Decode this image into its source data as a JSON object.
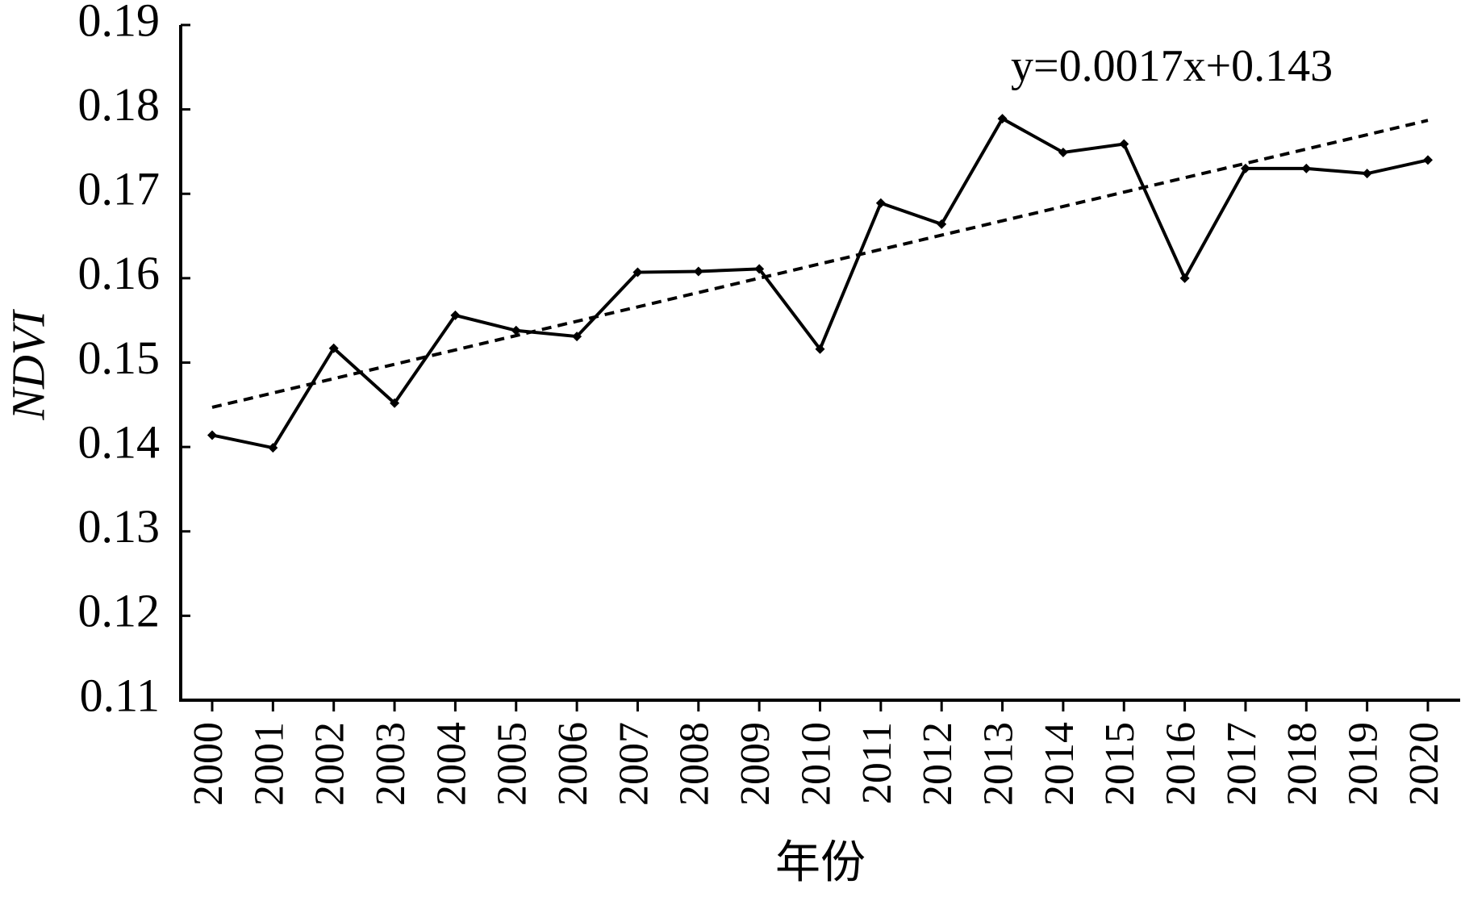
{
  "chart_data": {
    "type": "line",
    "x_label": "年份",
    "y_label": "NDVI",
    "categories": [
      "2000",
      "2001",
      "2002",
      "2003",
      "2004",
      "2005",
      "2006",
      "2007",
      "2008",
      "2009",
      "2010",
      "2011",
      "2012",
      "2013",
      "2014",
      "2015",
      "2016",
      "2017",
      "2018",
      "2019",
      "2020"
    ],
    "series": [
      {
        "color": "#000000",
        "values": [
          0.1414,
          0.1399,
          0.1517,
          0.1452,
          0.1556,
          0.1538,
          0.1531,
          0.1607,
          0.1608,
          0.1611,
          0.1516,
          0.1689,
          0.1664,
          0.1789,
          0.1749,
          0.1759,
          0.16,
          0.173,
          0.173,
          0.1724,
          0.174
        ]
      }
    ],
    "trend": {
      "label": "y=0.0017x+0.143",
      "slope": 0.0017,
      "intercept": 0.143,
      "color": "#000000"
    },
    "ylim": [
      0.11,
      0.19
    ],
    "yticks": [
      0.11,
      0.12,
      0.13,
      0.14,
      0.15,
      0.16,
      0.17,
      0.18,
      0.19
    ]
  }
}
